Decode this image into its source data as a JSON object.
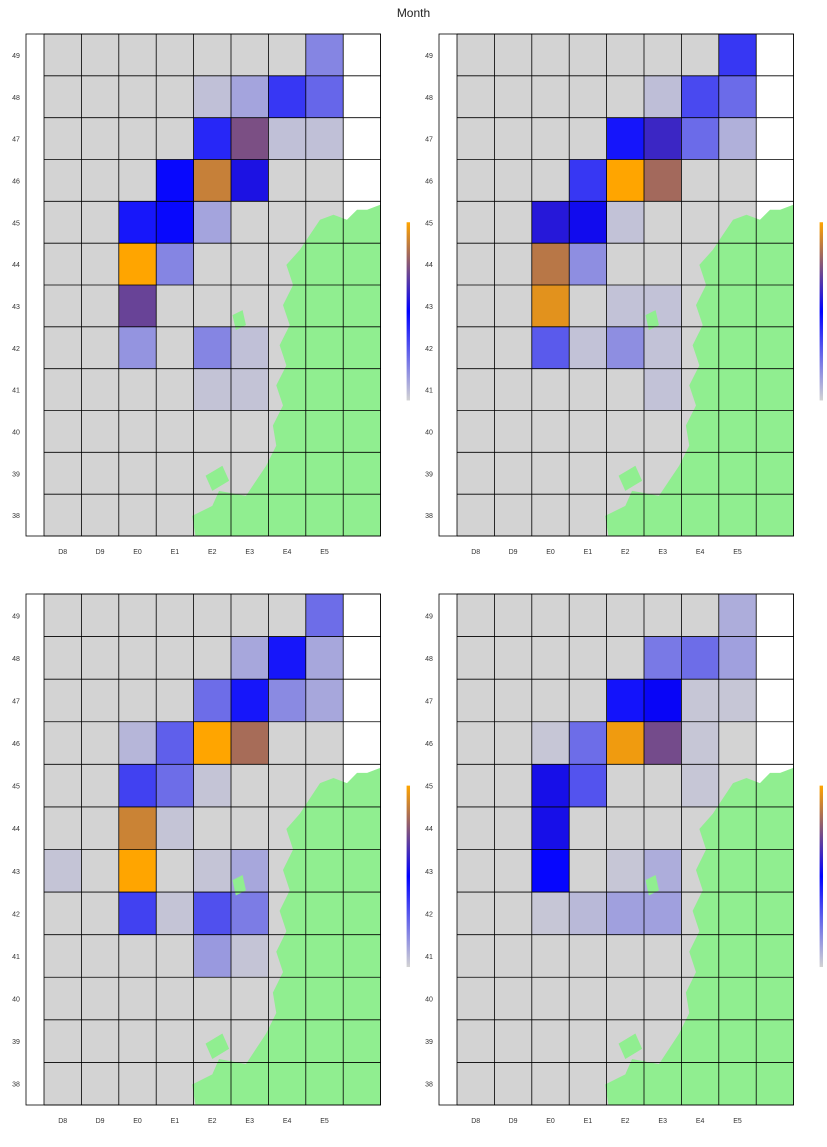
{
  "title": "Month",
  "colors": {
    "land": "#90ee90",
    "sea_cell": "#d3d3d3",
    "grid": "#000000",
    "scale_low": "#d3d3d3",
    "scale_mid": "#0000ff",
    "scale_high": "#ffa500"
  },
  "chart_data": [
    {
      "type": "heatmap",
      "title": "",
      "columns": [
        "D8",
        "D9",
        "E0",
        "E1",
        "E2",
        "E3",
        "E4",
        "E5"
      ],
      "rows": [
        "49",
        "48",
        "47",
        "46",
        "45",
        "44",
        "43",
        "42",
        "41",
        "40",
        "39",
        "38"
      ],
      "colorbar": {
        "min": 0,
        "max": 135,
        "ticks": [
          0,
          20,
          40,
          60,
          80,
          100,
          120
        ]
      },
      "values": [
        [
          0,
          0,
          0,
          0,
          0,
          0,
          0,
          25
        ],
        [
          0,
          0,
          0,
          0,
          6,
          15,
          50,
          35
        ],
        [
          0,
          0,
          0,
          0,
          55,
          100,
          6,
          6
        ],
        [
          0,
          0,
          0,
          65,
          120,
          75,
          0,
          0
        ],
        [
          0,
          0,
          60,
          65,
          15,
          0,
          0,
          0
        ],
        [
          0,
          0,
          135,
          25,
          0,
          0,
          0,
          0
        ],
        [
          0,
          0,
          95,
          0,
          0,
          0,
          0,
          0
        ],
        [
          0,
          0,
          20,
          0,
          25,
          6,
          0,
          0
        ],
        [
          0,
          0,
          0,
          0,
          5,
          5,
          0,
          0
        ],
        [
          0,
          0,
          0,
          0,
          0,
          0,
          0,
          0
        ],
        [
          0,
          0,
          0,
          0,
          0,
          0,
          0,
          0
        ],
        [
          0,
          0,
          0,
          0,
          0,
          0,
          0,
          0
        ]
      ]
    },
    {
      "type": "heatmap",
      "title": "",
      "columns": [
        "D8",
        "D9",
        "E0",
        "E1",
        "E2",
        "E3",
        "E4",
        "E5"
      ],
      "rows": [
        "49",
        "48",
        "47",
        "46",
        "45",
        "44",
        "43",
        "42",
        "41",
        "40",
        "39",
        "38"
      ],
      "colorbar": {
        "min": 0,
        "max": 122,
        "ticks": [
          0,
          20,
          40,
          60,
          80,
          100,
          120
        ]
      },
      "values": [
        [
          0,
          0,
          0,
          0,
          0,
          0,
          0,
          45
        ],
        [
          0,
          0,
          0,
          0,
          0,
          6,
          40,
          30
        ],
        [
          0,
          0,
          0,
          0,
          55,
          75,
          30,
          10
        ],
        [
          0,
          0,
          0,
          45,
          122,
          100,
          0,
          0
        ],
        [
          0,
          0,
          70,
          65,
          5,
          0,
          0,
          0
        ],
        [
          0,
          0,
          105,
          20,
          0,
          0,
          0,
          0
        ],
        [
          0,
          0,
          115,
          0,
          5,
          5,
          0,
          0
        ],
        [
          0,
          0,
          35,
          5,
          20,
          5,
          0,
          0
        ],
        [
          0,
          0,
          0,
          0,
          0,
          5,
          0,
          0
        ],
        [
          0,
          0,
          0,
          0,
          0,
          0,
          0,
          0
        ],
        [
          0,
          0,
          0,
          0,
          0,
          0,
          0,
          0
        ],
        [
          0,
          0,
          0,
          0,
          0,
          0,
          0,
          0
        ]
      ]
    },
    {
      "type": "heatmap",
      "title": "",
      "columns": [
        "D8",
        "D9",
        "E0",
        "E1",
        "E2",
        "E3",
        "E4",
        "E5"
      ],
      "rows": [
        "49",
        "48",
        "47",
        "46",
        "45",
        "44",
        "43",
        "42",
        "41",
        "40",
        "39",
        "38"
      ],
      "colorbar": {
        "min": 0,
        "max": 145,
        "ticks": [
          0,
          20,
          40,
          60,
          80,
          100,
          120,
          140
        ]
      },
      "values": [
        [
          0,
          0,
          0,
          0,
          0,
          0,
          0,
          35
        ],
        [
          0,
          0,
          0,
          0,
          0,
          15,
          65,
          15
        ],
        [
          0,
          0,
          0,
          0,
          35,
          65,
          25,
          15
        ],
        [
          0,
          0,
          10,
          40,
          145,
          120,
          0,
          0
        ],
        [
          0,
          0,
          50,
          35,
          5,
          0,
          0,
          0
        ],
        [
          0,
          0,
          130,
          5,
          0,
          0,
          0,
          0
        ],
        [
          5,
          0,
          145,
          0,
          5,
          15,
          0,
          0
        ],
        [
          0,
          0,
          50,
          5,
          45,
          30,
          0,
          0
        ],
        [
          0,
          0,
          0,
          0,
          20,
          5,
          0,
          0
        ],
        [
          0,
          0,
          0,
          0,
          0,
          0,
          0,
          0
        ],
        [
          0,
          0,
          0,
          0,
          0,
          0,
          0,
          0
        ],
        [
          0,
          0,
          0,
          0,
          0,
          0,
          0,
          0
        ]
      ]
    },
    {
      "type": "heatmap",
      "title": "",
      "columns": [
        "D8",
        "D9",
        "E0",
        "E1",
        "E2",
        "E3",
        "E4",
        "E5"
      ],
      "rows": [
        "49",
        "48",
        "47",
        "46",
        "45",
        "44",
        "43",
        "42",
        "41",
        "40",
        "39",
        "38"
      ],
      "colorbar": {
        "min": 0,
        "max": 165,
        "ticks": [
          0,
          50,
          100,
          150
        ]
      },
      "values": [
        [
          0,
          0,
          0,
          0,
          0,
          0,
          0,
          15
        ],
        [
          0,
          0,
          0,
          0,
          0,
          35,
          40,
          20
        ],
        [
          0,
          0,
          0,
          0,
          75,
          85,
          5,
          5
        ],
        [
          0,
          0,
          5,
          40,
          160,
          120,
          5,
          0
        ],
        [
          0,
          0,
          90,
          50,
          0,
          0,
          5,
          0
        ],
        [
          0,
          0,
          90,
          0,
          0,
          0,
          0,
          0
        ],
        [
          0,
          0,
          80,
          0,
          5,
          15,
          0,
          0
        ],
        [
          0,
          0,
          5,
          10,
          20,
          20,
          0,
          0
        ],
        [
          0,
          0,
          0,
          0,
          0,
          0,
          0,
          0
        ],
        [
          0,
          0,
          0,
          0,
          0,
          0,
          0,
          0
        ],
        [
          0,
          0,
          0,
          0,
          0,
          0,
          0,
          0
        ],
        [
          0,
          0,
          0,
          0,
          0,
          0,
          0,
          0
        ]
      ]
    }
  ]
}
